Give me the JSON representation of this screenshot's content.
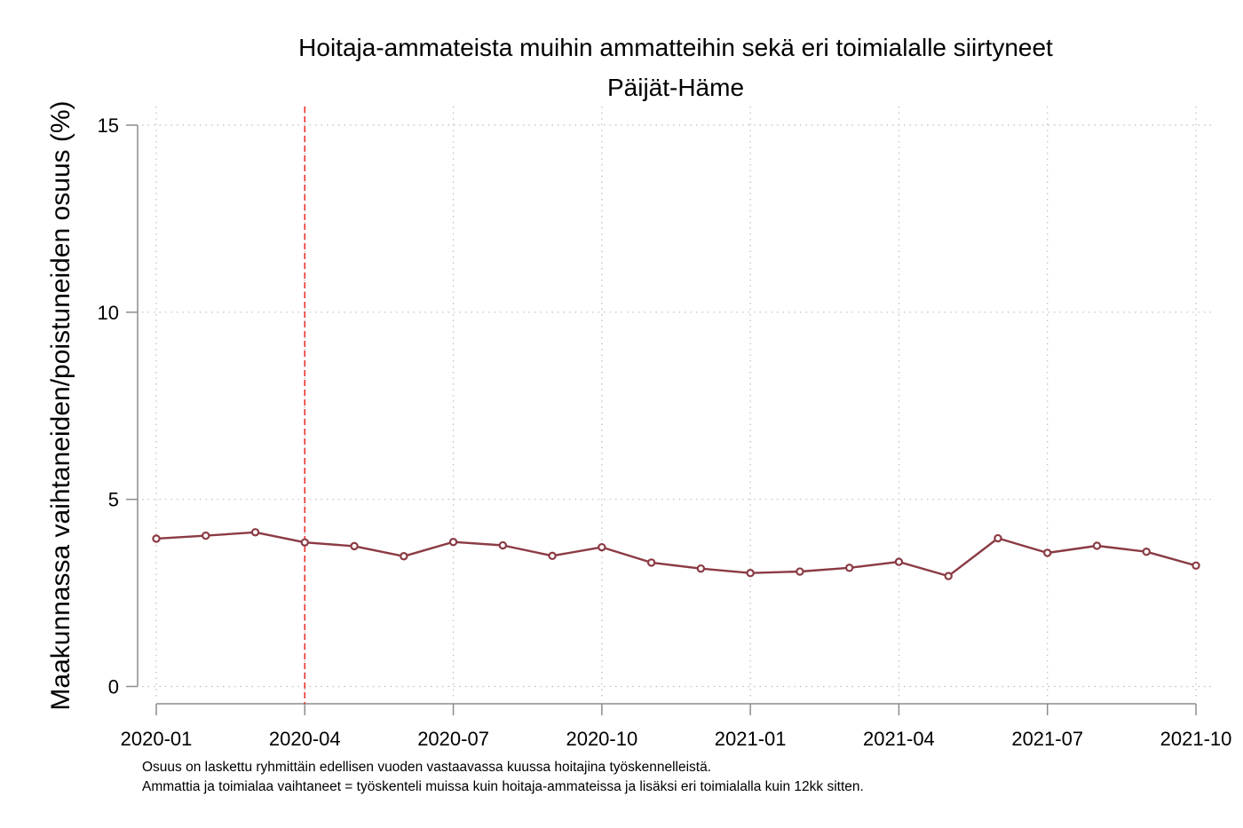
{
  "chart_data": {
    "type": "line",
    "title": "Hoitaja-ammateista muihin ammatteihin sekä eri toimialalle siirtyneet",
    "subtitle": "Päijät-Häme",
    "xlabel": "",
    "ylabel": "Maakunnassa vaihtaneiden/poistuneiden osuus (%)",
    "ylim": [
      0,
      15
    ],
    "yticks": [
      0,
      5,
      10,
      15
    ],
    "x_tick_labels": [
      "2020-01",
      "2020-04",
      "2020-07",
      "2020-10",
      "2021-01",
      "2021-04",
      "2021-07",
      "2021-10"
    ],
    "x": [
      "2020-01",
      "2020-02",
      "2020-03",
      "2020-04",
      "2020-05",
      "2020-06",
      "2020-07",
      "2020-08",
      "2020-09",
      "2020-10",
      "2020-11",
      "2020-12",
      "2021-01",
      "2021-02",
      "2021-03",
      "2021-04",
      "2021-05",
      "2021-06",
      "2021-07",
      "2021-08",
      "2021-09",
      "2021-10"
    ],
    "series": [
      {
        "values": [
          3.95,
          4.03,
          4.12,
          3.85,
          3.75,
          3.48,
          3.86,
          3.77,
          3.49,
          3.72,
          3.31,
          3.15,
          3.03,
          3.07,
          3.17,
          3.33,
          2.95,
          3.96,
          3.57,
          3.76,
          3.6,
          3.23
        ],
        "color": "#8b3a44"
      }
    ],
    "reference_line": {
      "x": "2020-04",
      "color": "#e8322c",
      "style": "dashed"
    },
    "grid": true,
    "grid_style": "dotted",
    "notes": [
      "Osuus on laskettu ryhmittäin edellisen vuoden vastaavassa kuussa hoitajina työskennelleistä.",
      "Ammattia ja toimialaa vaihtaneet = työskenteli muissa kuin hoitaja-ammateissa ja lisäksi eri toimialalla kuin 12kk sitten."
    ]
  }
}
